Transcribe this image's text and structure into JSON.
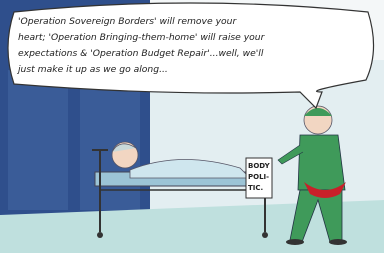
{
  "speech_bubble": {
    "lines": [
      "'Operation Sovereign Borders' will remove your",
      "heart; 'Operation Bringing-them-home' will raise your",
      "expectations & 'Operation Budget Repair'...well, we'll",
      "just make it up as we go along..."
    ]
  },
  "sign": {
    "lines": [
      "BODY",
      "POLI-",
      "TIC."
    ]
  }
}
